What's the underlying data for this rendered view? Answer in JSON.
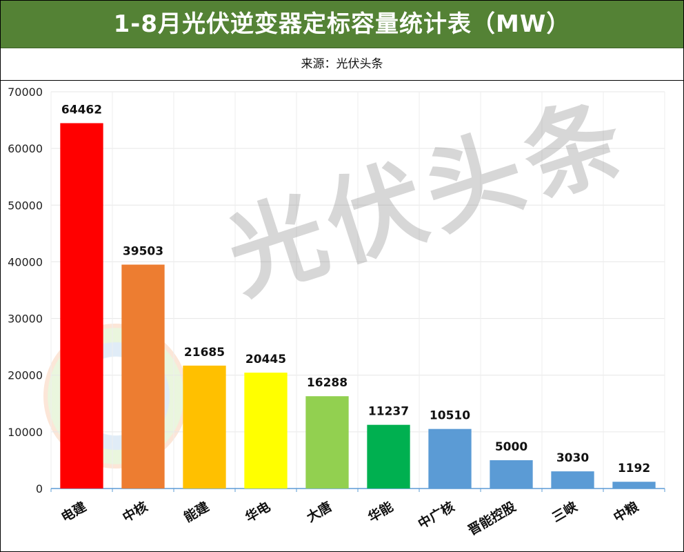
{
  "title": "1-8月光伏逆变器定标容量统计表（MW）",
  "source": "来源：光伏头条",
  "watermark": "光伏头条",
  "chart_data": {
    "type": "bar",
    "title": "1-8月光伏逆变器定标容量统计表（MW）",
    "categories": [
      "电建",
      "中核",
      "能建",
      "华电",
      "大唐",
      "华能",
      "中广核",
      "晋能控股",
      "三峡",
      "中粮"
    ],
    "values": [
      64462,
      39503,
      21685,
      20445,
      16288,
      11237,
      10510,
      5000,
      3030,
      1192
    ],
    "colors": [
      "#ff0000",
      "#ed7d31",
      "#ffc000",
      "#ffff00",
      "#92d050",
      "#00b050",
      "#5b9bd5",
      "#5b9bd5",
      "#5b9bd5",
      "#5b9bd5"
    ],
    "ylim": [
      0,
      70000
    ],
    "yticks": [
      0,
      10000,
      20000,
      30000,
      40000,
      50000,
      60000,
      70000
    ],
    "xlabel": "",
    "ylabel": "",
    "grid": true,
    "data_labels": true
  }
}
